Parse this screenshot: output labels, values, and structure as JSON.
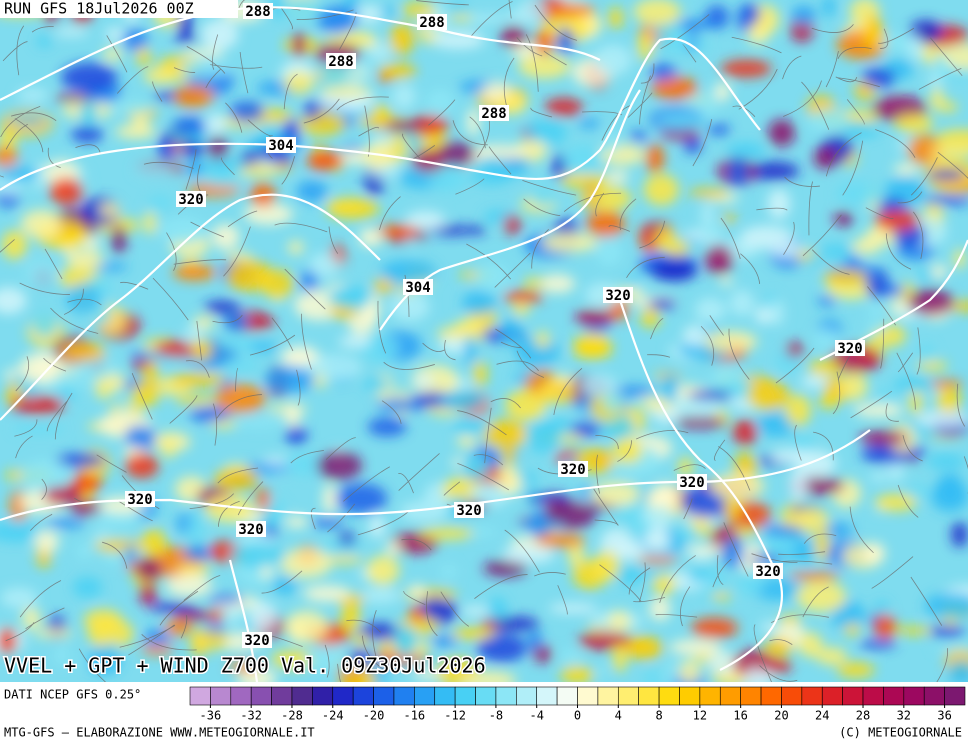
{
  "header": {
    "run": "RUN GFS 18Jul2026 00Z"
  },
  "contours": {
    "labels": [
      288,
      288,
      288,
      288,
      304,
      320,
      304,
      320,
      320,
      320,
      320,
      320,
      320,
      320,
      320,
      320
    ]
  },
  "title": "VVEL + GPT + WIND Z700 Val. 09Z30Jul2026",
  "source": "DATI NCEP GFS 0.25°",
  "colorbar": {
    "lim": [
      -38,
      38
    ],
    "ticks": [
      -36,
      -32,
      -28,
      -24,
      -20,
      -16,
      -12,
      -8,
      -4,
      0,
      4,
      8,
      12,
      16,
      20,
      24,
      28,
      32,
      36
    ],
    "colors": [
      "#d0a8e0",
      "#b888d0",
      "#a068c0",
      "#8850b0",
      "#703c9c",
      "#502c90",
      "#3020a8",
      "#2028c8",
      "#1c44dc",
      "#1c60e8",
      "#2080f0",
      "#28a0f4",
      "#34bcf4",
      "#48d0f4",
      "#68dcf4",
      "#8ce6f6",
      "#b0eef8",
      "#d4f6fa",
      "#f4fcf4",
      "#fffad0",
      "#fff4a0",
      "#ffee70",
      "#ffe640",
      "#ffdc10",
      "#ffcc00",
      "#ffb400",
      "#ff9c00",
      "#ff8400",
      "#ff6800",
      "#f84c08",
      "#ec3418",
      "#dc2028",
      "#cc1438",
      "#bc0c48",
      "#ac0854",
      "#9c0860",
      "#8c1068",
      "#7c1870"
    ]
  },
  "footer": {
    "left": "MTG-GFS — ELABORAZIONE WWW.METEOGIORNALE.IT",
    "right": "(C) METEOGIORNALE"
  }
}
